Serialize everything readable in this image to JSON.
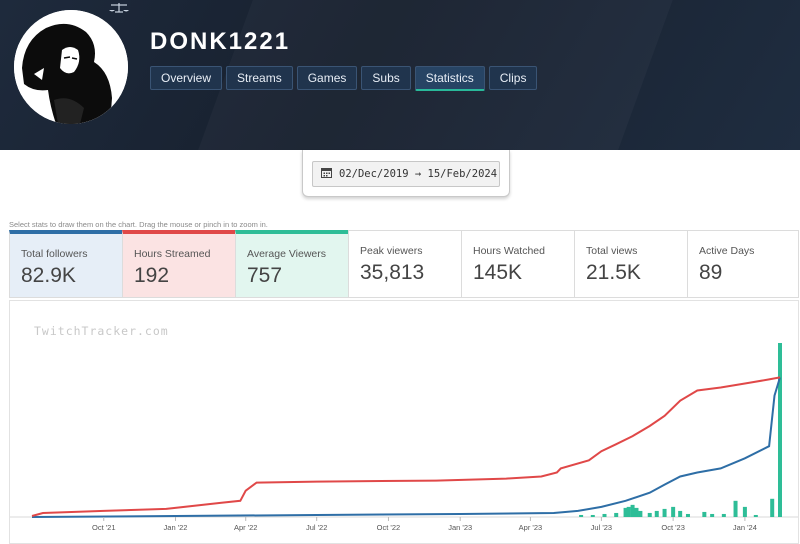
{
  "channel": {
    "name": "DONK1221",
    "badge_icon": "scales-icon"
  },
  "nav": {
    "tabs": [
      {
        "label": "Overview",
        "active": false
      },
      {
        "label": "Streams",
        "active": false
      },
      {
        "label": "Games",
        "active": false
      },
      {
        "label": "Subs",
        "active": false
      },
      {
        "label": "Statistics",
        "active": true
      },
      {
        "label": "Clips",
        "active": false
      }
    ]
  },
  "date_range": {
    "icon": "calendar-icon",
    "text": "02/Dec/2019 → 15/Feb/2024"
  },
  "hint": "Select stats to draw them on the chart. Drag the mouse or pinch in to zoom in.",
  "stats": [
    {
      "label": "Total followers",
      "value": "82.9K",
      "color": "#2e6ea6"
    },
    {
      "label": "Hours Streamed",
      "value": "192",
      "color": "#e04848"
    },
    {
      "label": "Average Viewers",
      "value": "757",
      "color": "#2ebd97"
    },
    {
      "label": "Peak viewers",
      "value": "35,813"
    },
    {
      "label": "Hours Watched",
      "value": "145K"
    },
    {
      "label": "Total views",
      "value": "21.5K"
    },
    {
      "label": "Active Days",
      "value": "89"
    }
  ],
  "chart_data": {
    "type": "line",
    "watermark": "TwitchTracker.com",
    "x_ticks": [
      "Oct '21",
      "Jan '22",
      "Apr '22",
      "Jul '22",
      "Oct '22",
      "Jan '23",
      "Apr '23",
      "Jul '23",
      "Oct '23",
      "Jan '24"
    ],
    "series": [
      {
        "name": "Hours Streamed",
        "color": "#e04848",
        "points": [
          [
            "2021-07-01",
            1
          ],
          [
            "2021-07-15",
            4
          ],
          [
            "2021-10-01",
            6
          ],
          [
            "2021-12-20",
            8
          ],
          [
            "2022-03-01",
            14
          ],
          [
            "2022-03-25",
            16
          ],
          [
            "2022-04-01",
            26
          ],
          [
            "2022-04-15",
            34
          ],
          [
            "2022-07-01",
            35
          ],
          [
            "2022-12-01",
            36
          ],
          [
            "2023-03-01",
            38
          ],
          [
            "2023-04-15",
            40
          ],
          [
            "2023-05-05",
            44
          ],
          [
            "2023-05-10",
            48
          ],
          [
            "2023-06-15",
            56
          ],
          [
            "2023-07-01",
            65
          ],
          [
            "2023-07-20",
            72
          ],
          [
            "2023-08-10",
            80
          ],
          [
            "2023-09-01",
            90
          ],
          [
            "2023-09-20",
            100
          ],
          [
            "2023-10-10",
            115
          ],
          [
            "2023-11-01",
            125
          ],
          [
            "2023-12-01",
            128
          ],
          [
            "2024-01-01",
            132
          ],
          [
            "2024-02-01",
            136
          ],
          [
            "2024-02-15",
            138
          ]
        ]
      },
      {
        "name": "Total followers",
        "color": "#2e6ea6",
        "points": [
          [
            "2021-07-01",
            0
          ],
          [
            "2022-01-01",
            1
          ],
          [
            "2022-07-01",
            2
          ],
          [
            "2023-01-01",
            3
          ],
          [
            "2023-05-01",
            4
          ],
          [
            "2023-06-01",
            6
          ],
          [
            "2023-07-01",
            10
          ],
          [
            "2023-08-01",
            16
          ],
          [
            "2023-09-01",
            24
          ],
          [
            "2023-09-20",
            32
          ],
          [
            "2023-10-10",
            40
          ],
          [
            "2023-11-01",
            44
          ],
          [
            "2023-12-01",
            48
          ],
          [
            "2024-01-01",
            58
          ],
          [
            "2024-02-01",
            70
          ],
          [
            "2024-02-08",
            120
          ],
          [
            "2024-02-15",
            138
          ]
        ]
      },
      {
        "name": "Average Viewers",
        "type": "bar",
        "color": "#2ebd97",
        "points": [
          [
            "2023-06-05",
            2
          ],
          [
            "2023-06-20",
            2
          ],
          [
            "2023-07-05",
            3
          ],
          [
            "2023-07-20",
            4
          ],
          [
            "2023-08-01",
            9
          ],
          [
            "2023-08-05",
            10
          ],
          [
            "2023-08-10",
            12
          ],
          [
            "2023-08-15",
            9
          ],
          [
            "2023-08-20",
            6
          ],
          [
            "2023-09-01",
            4
          ],
          [
            "2023-09-10",
            6
          ],
          [
            "2023-09-20",
            8
          ],
          [
            "2023-10-01",
            10
          ],
          [
            "2023-10-10",
            6
          ],
          [
            "2023-10-20",
            3
          ],
          [
            "2023-11-10",
            5
          ],
          [
            "2023-11-20",
            3
          ],
          [
            "2023-12-05",
            3
          ],
          [
            "2023-12-20",
            16
          ],
          [
            "2024-01-01",
            10
          ],
          [
            "2024-01-15",
            2
          ],
          [
            "2024-02-05",
            18
          ],
          [
            "2024-02-15",
            172
          ]
        ]
      }
    ],
    "y_max": 172
  }
}
